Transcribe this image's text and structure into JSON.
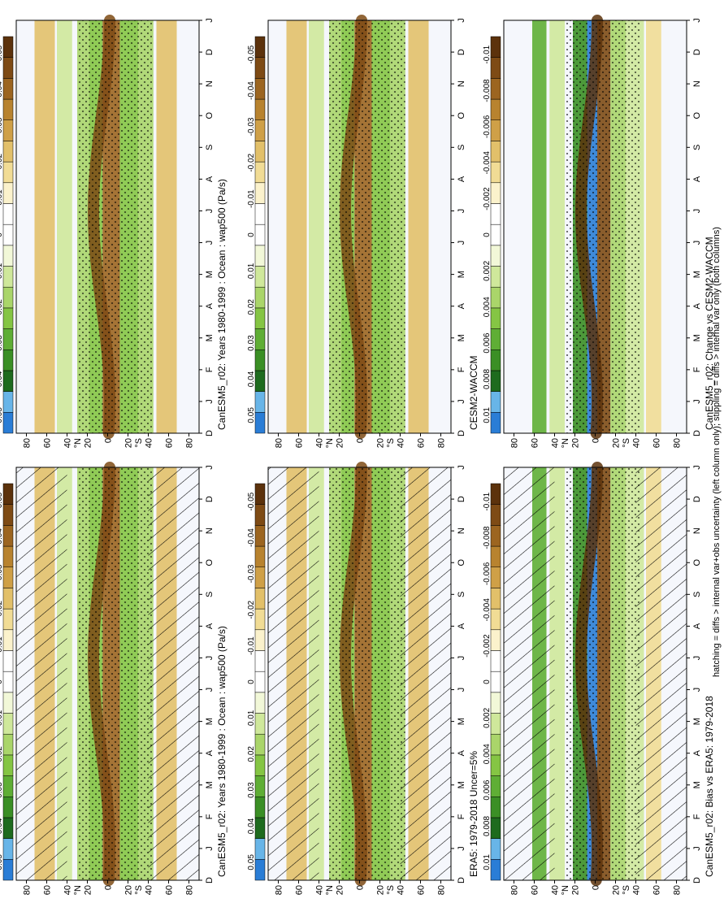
{
  "footnote": "hatching = diffs > internal var+obs uncertainty (left column only); stippling = diffs > internal var only (both columns)",
  "month_labels": [
    "D",
    "J",
    "F",
    "M",
    "A",
    "M",
    "J",
    "J",
    "A",
    "S",
    "O",
    "N",
    "D",
    "J"
  ],
  "lat_labels": [
    "80",
    "60",
    "40",
    "°N",
    "20",
    "0",
    "20",
    "°S",
    "40",
    "60",
    "80"
  ],
  "colorbar_ab": {
    "labels": [
      "0.05",
      "0.04",
      "0.03",
      "0.02",
      "0.01",
      "0",
      "-0.01",
      "-0.02",
      "-0.03",
      "-0.04",
      "-0.05"
    ],
    "colors": [
      "#2a7dd6",
      "#68b5e8",
      "#1e6b1e",
      "#3b8f25",
      "#5fae35",
      "#85c544",
      "#aad56a",
      "#cfe89b",
      "#f2f8d8",
      "#ffffff",
      "#ffffff",
      "#fbf2cc",
      "#f1dc95",
      "#e2c06a",
      "#cfa047",
      "#b8832f",
      "#9c6520",
      "#7e4b15",
      "#5c320c"
    ]
  },
  "colorbar_c": {
    "labels": [
      "0.01",
      "0.008",
      "0.006",
      "0.004",
      "0.002",
      "0",
      "-0.002",
      "-0.004",
      "-0.006",
      "-0.008",
      "-0.01"
    ],
    "colors": [
      "#2a7dd6",
      "#68b5e8",
      "#1e6b1e",
      "#3b8f25",
      "#5fae35",
      "#85c544",
      "#aad56a",
      "#cfe89b",
      "#f2f8d8",
      "#ffffff",
      "#ffffff",
      "#fbf2cc",
      "#f1dc95",
      "#e2c06a",
      "#cfa047",
      "#b8832f",
      "#9c6520",
      "#7e4b15",
      "#5c320c"
    ]
  },
  "chart_data": [
    {
      "type": "heatmap",
      "panel": "left-top",
      "title": "CanESM5_r02: Years 1980-1999 : Ocean : wap500 (Pa/s)",
      "variable": "wap500",
      "units": "Pa/s",
      "x": "month",
      "y": "latitude",
      "zlim": [
        -0.05,
        0.05
      ],
      "hatching": true,
      "stippling": true
    },
    {
      "type": "heatmap",
      "panel": "left-middle",
      "title": "ERA5: 1979-2018 Uncer=5%",
      "variable": "wap500",
      "units": "Pa/s",
      "x": "month",
      "y": "latitude",
      "zlim": [
        -0.05,
        0.05
      ],
      "hatching": true,
      "stippling": true
    },
    {
      "type": "heatmap",
      "panel": "left-bottom",
      "title": "CanESM5_r02: Bias vs ERA5: 1979-2018",
      "variable": "wap500",
      "units": "Pa/s",
      "x": "month",
      "y": "latitude",
      "zlim": [
        -0.01,
        0.01
      ],
      "hatching": true,
      "stippling": true
    },
    {
      "type": "heatmap",
      "panel": "right-top",
      "title": "CanESM5_r02: Years 1980-1999 : Ocean : wap500 (Pa/s)",
      "variable": "wap500",
      "units": "Pa/s",
      "x": "month",
      "y": "latitude",
      "zlim": [
        -0.05,
        0.05
      ],
      "hatching": false,
      "stippling": true
    },
    {
      "type": "heatmap",
      "panel": "right-middle",
      "title": "CESM2-WACCM",
      "variable": "wap500",
      "units": "Pa/s",
      "x": "month",
      "y": "latitude",
      "zlim": [
        -0.05,
        0.05
      ],
      "hatching": false,
      "stippling": true
    },
    {
      "type": "heatmap",
      "panel": "right-bottom",
      "title": "CanESM5_r02: Change vs CESM2-WACCM",
      "variable": "wap500",
      "units": "Pa/s",
      "x": "month",
      "y": "latitude",
      "zlim": [
        -0.01,
        0.01
      ],
      "hatching": false,
      "stippling": true
    }
  ]
}
